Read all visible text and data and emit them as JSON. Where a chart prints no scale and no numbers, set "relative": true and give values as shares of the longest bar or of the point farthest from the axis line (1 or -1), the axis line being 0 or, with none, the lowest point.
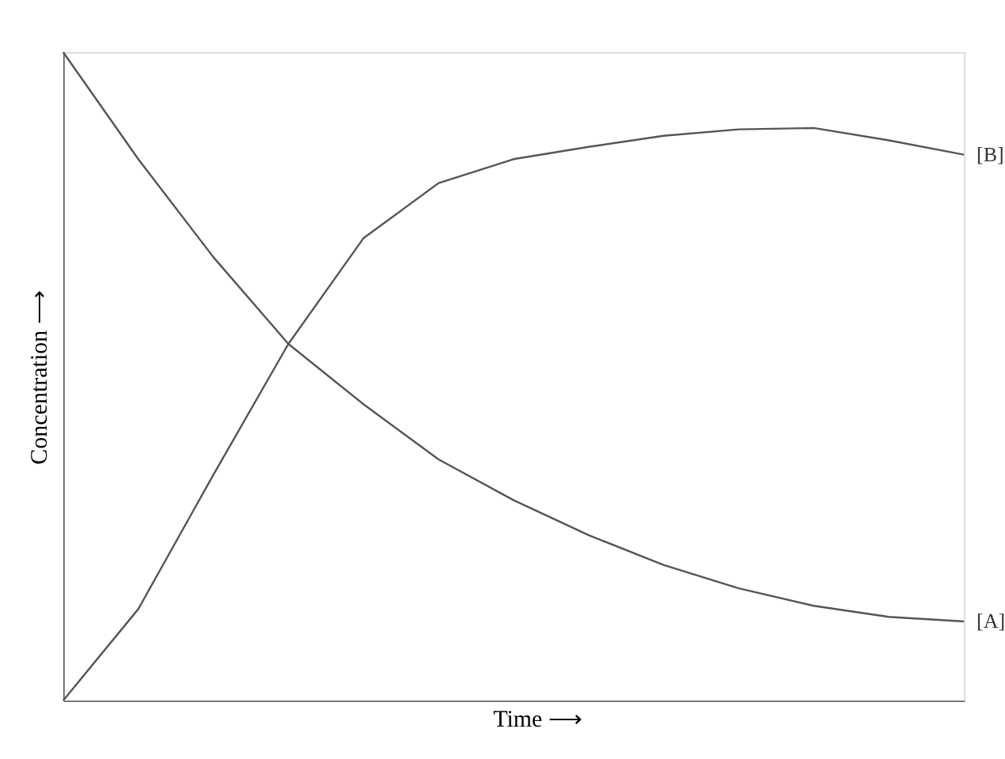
{
  "chart_data": {
    "type": "line",
    "relative": true,
    "xlabel": "Time ⟶",
    "ylabel": "Concentration ⟶",
    "categories": [
      null,
      null,
      null,
      null,
      null,
      null,
      null,
      null,
      null,
      null,
      null,
      null,
      null
    ],
    "series": [
      {
        "name": "[B]",
        "color": "#555555",
        "values": [
          0,
          0.141,
          0.348,
          0.55,
          0.713,
          0.798,
          0.835,
          0.854,
          0.871,
          0.881,
          0.883,
          0.864,
          0.842
        ]
      },
      {
        "name": "[A]",
        "color": "#555555",
        "values": [
          1,
          0.835,
          0.684,
          0.55,
          0.457,
          0.372,
          0.309,
          0.255,
          0.209,
          0.173,
          0.146,
          0.129,
          0.122
        ]
      }
    ],
    "legend": false,
    "grid": false,
    "marker": "none",
    "line_style": "solid"
  }
}
